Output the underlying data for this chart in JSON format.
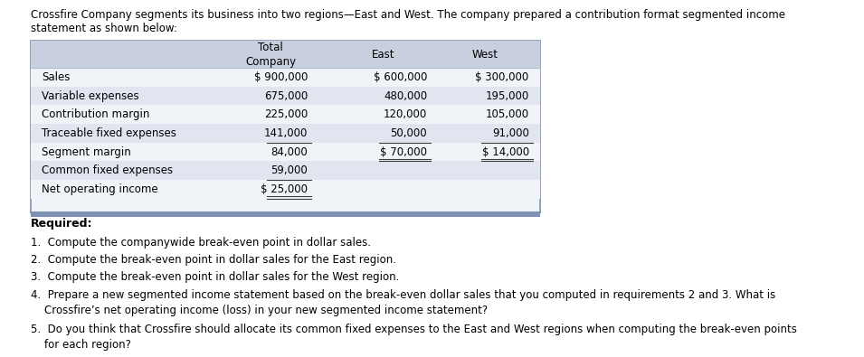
{
  "intro_text": "Crossfire Company segments its business into two regions—East and West. The company prepared a contribution format segmented income\nstatement as shown below:",
  "header_row": [
    "",
    "Total\nCompany",
    "East",
    "West"
  ],
  "header_bg": "#d0d8e8",
  "table_bg": "#ffffff",
  "row_bg_alt": "#e8ecf4",
  "rows": [
    {
      "label": "Sales",
      "total": "$ 900,000",
      "east": "$ 600,000",
      "west": "$ 300,000",
      "bold": false,
      "indent": false
    },
    {
      "label": "Variable expenses",
      "total": "675,000",
      "east": "480,000",
      "west": "195,000",
      "bold": false,
      "indent": false
    },
    {
      "label": "Contribution margin",
      "total": "225,000",
      "east": "120,000",
      "west": "105,000",
      "bold": false,
      "indent": false
    },
    {
      "label": "Traceable fixed expenses",
      "total": "141,000",
      "east": "50,000",
      "west": "91,000",
      "bold": false,
      "indent": false
    },
    {
      "label": "Segment margin",
      "total": "84,000",
      "east": "$ 70,000",
      "west": "$ 14,000",
      "bold": false,
      "indent": false
    },
    {
      "label": "Common fixed expenses",
      "total": "59,000",
      "east": "",
      "west": "",
      "bold": false,
      "indent": false
    },
    {
      "label": "Net operating income",
      "total": "$ 25,000",
      "east": "",
      "west": "",
      "bold": false,
      "indent": false
    }
  ],
  "required_title": "Required:",
  "required_items": [
    "1.  Compute the companywide break-even point in dollar sales.",
    "2.  Compute the break-even point in dollar sales for the East region.",
    "3.  Compute the break-even point in dollar sales for the West region.",
    "4.  Prepare a new segmented income statement based on the break-even dollar sales that you computed in requirements 2 and 3. What is\n    Crossfire’s net operating income (loss) in your new segmented income statement?",
    "5.  Do you think that Crossfire should allocate its common fixed expenses to the East and West regions when computing the break-even points\n    for each region?"
  ],
  "bg_color": "#ffffff",
  "text_color": "#000000",
  "font_size": 8.5,
  "table_outer_border": "#8090b0",
  "table_inner_line": "#b0bcd0"
}
